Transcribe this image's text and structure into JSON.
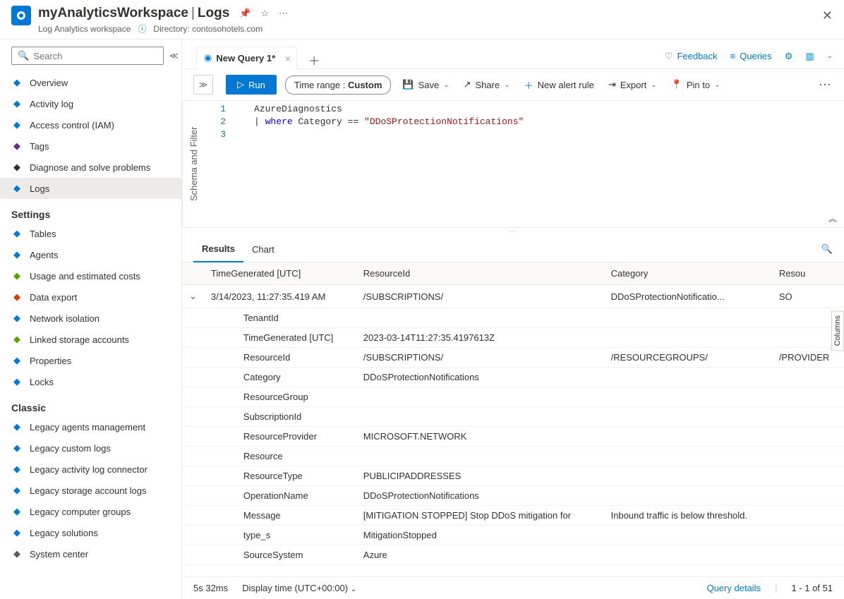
{
  "header": {
    "workspace_name": "myAnalyticsWorkspace",
    "section": "Logs",
    "subtitle": "Log Analytics workspace",
    "directory_label": "Directory: contosohotels.com"
  },
  "sidebar": {
    "search_placeholder": "Search",
    "groups": [
      {
        "title": null,
        "items": [
          {
            "label": "Overview",
            "icon": "overview",
            "color": "#0078d4"
          },
          {
            "label": "Activity log",
            "icon": "activity",
            "color": "#0078d4"
          },
          {
            "label": "Access control (IAM)",
            "icon": "access",
            "color": "#0078d4"
          },
          {
            "label": "Tags",
            "icon": "tags",
            "color": "#5c2e91"
          },
          {
            "label": "Diagnose and solve problems",
            "icon": "diagnose",
            "color": "#323130"
          },
          {
            "label": "Logs",
            "icon": "logs",
            "color": "#0078d4",
            "active": true
          }
        ]
      },
      {
        "title": "Settings",
        "items": [
          {
            "label": "Tables",
            "icon": "tables",
            "color": "#0078d4"
          },
          {
            "label": "Agents",
            "icon": "agents",
            "color": "#0078d4"
          },
          {
            "label": "Usage and estimated costs",
            "icon": "usage",
            "color": "#57a300"
          },
          {
            "label": "Data export",
            "icon": "dataexport",
            "color": "#d83b01"
          },
          {
            "label": "Network isolation",
            "icon": "network",
            "color": "#0078d4"
          },
          {
            "label": "Linked storage accounts",
            "icon": "storage",
            "color": "#57a300"
          },
          {
            "label": "Properties",
            "icon": "properties",
            "color": "#0078d4"
          },
          {
            "label": "Locks",
            "icon": "locks",
            "color": "#0078d4"
          }
        ]
      },
      {
        "title": "Classic",
        "items": [
          {
            "label": "Legacy agents management",
            "icon": "legacy",
            "color": "#0078d4"
          },
          {
            "label": "Legacy custom logs",
            "icon": "legacy",
            "color": "#0078d4"
          },
          {
            "label": "Legacy activity log connector",
            "icon": "legacy",
            "color": "#0078d4"
          },
          {
            "label": "Legacy storage account logs",
            "icon": "legacy",
            "color": "#0078d4"
          },
          {
            "label": "Legacy computer groups",
            "icon": "legacy",
            "color": "#0078d4"
          },
          {
            "label": "Legacy solutions",
            "icon": "legacy",
            "color": "#0078d4"
          },
          {
            "label": "System center",
            "icon": "legacy",
            "color": "#605e5c"
          }
        ]
      }
    ]
  },
  "tabs": {
    "active_tab": "New Query 1*"
  },
  "top_actions": {
    "feedback": "Feedback",
    "queries": "Queries"
  },
  "toolbar": {
    "run": "Run",
    "time_range_label": "Time range :",
    "time_range_value": "Custom",
    "save": "Save",
    "share": "Share",
    "new_alert": "New alert rule",
    "export": "Export",
    "pin": "Pin to"
  },
  "schema_panel_label": "Schema and Filter",
  "editor": {
    "lines": [
      {
        "plain": "AzureDiagnostics"
      },
      {
        "indent": "| ",
        "kw": "where",
        "mid": " Category == ",
        "str": "\"DDoSProtectionNotifications\""
      },
      {
        "plain": ""
      }
    ]
  },
  "results": {
    "tabs": {
      "results": "Results",
      "chart": "Chart"
    },
    "columns": [
      "TimeGenerated [UTC]",
      "ResourceId",
      "Category",
      "Resou"
    ],
    "columns_side": "Columns",
    "row": {
      "TimeGenerated": "3/14/2023, 11:27:35.419 AM",
      "ResourceId": "/SUBSCRIPTIONS/",
      "Category": "DDoSProtectionNotificatio...",
      "Res": "SO"
    },
    "details": [
      {
        "k": "TenantId",
        "v": ""
      },
      {
        "k": "TimeGenerated [UTC]",
        "v": "2023-03-14T11:27:35.4197613Z"
      },
      {
        "k": "ResourceId",
        "v": "/SUBSCRIPTIONS/",
        "v2": "/RESOURCEGROUPS/",
        "v3": "/PROVIDER"
      },
      {
        "k": "Category",
        "v": "DDoSProtectionNotifications"
      },
      {
        "k": "ResourceGroup",
        "v": ""
      },
      {
        "k": "SubscriptionId",
        "v": ""
      },
      {
        "k": "ResourceProvider",
        "v": "MICROSOFT.NETWORK"
      },
      {
        "k": "Resource",
        "v": ""
      },
      {
        "k": "ResourceType",
        "v": "PUBLICIPADDRESSES"
      },
      {
        "k": "OperationName",
        "v": "DDoSProtectionNotifications"
      },
      {
        "k": "Message",
        "v": "[MITIGATION STOPPED] Stop DDoS mitigation for",
        "v2": "Inbound traffic is below threshold."
      },
      {
        "k": "type_s",
        "v": "MitigationStopped"
      },
      {
        "k": "SourceSystem",
        "v": "Azure"
      }
    ]
  },
  "status": {
    "duration": "5s 32ms",
    "display_time": "Display time (UTC+00:00)",
    "query_details": "Query details",
    "pager": "1 - 1 of 51"
  }
}
